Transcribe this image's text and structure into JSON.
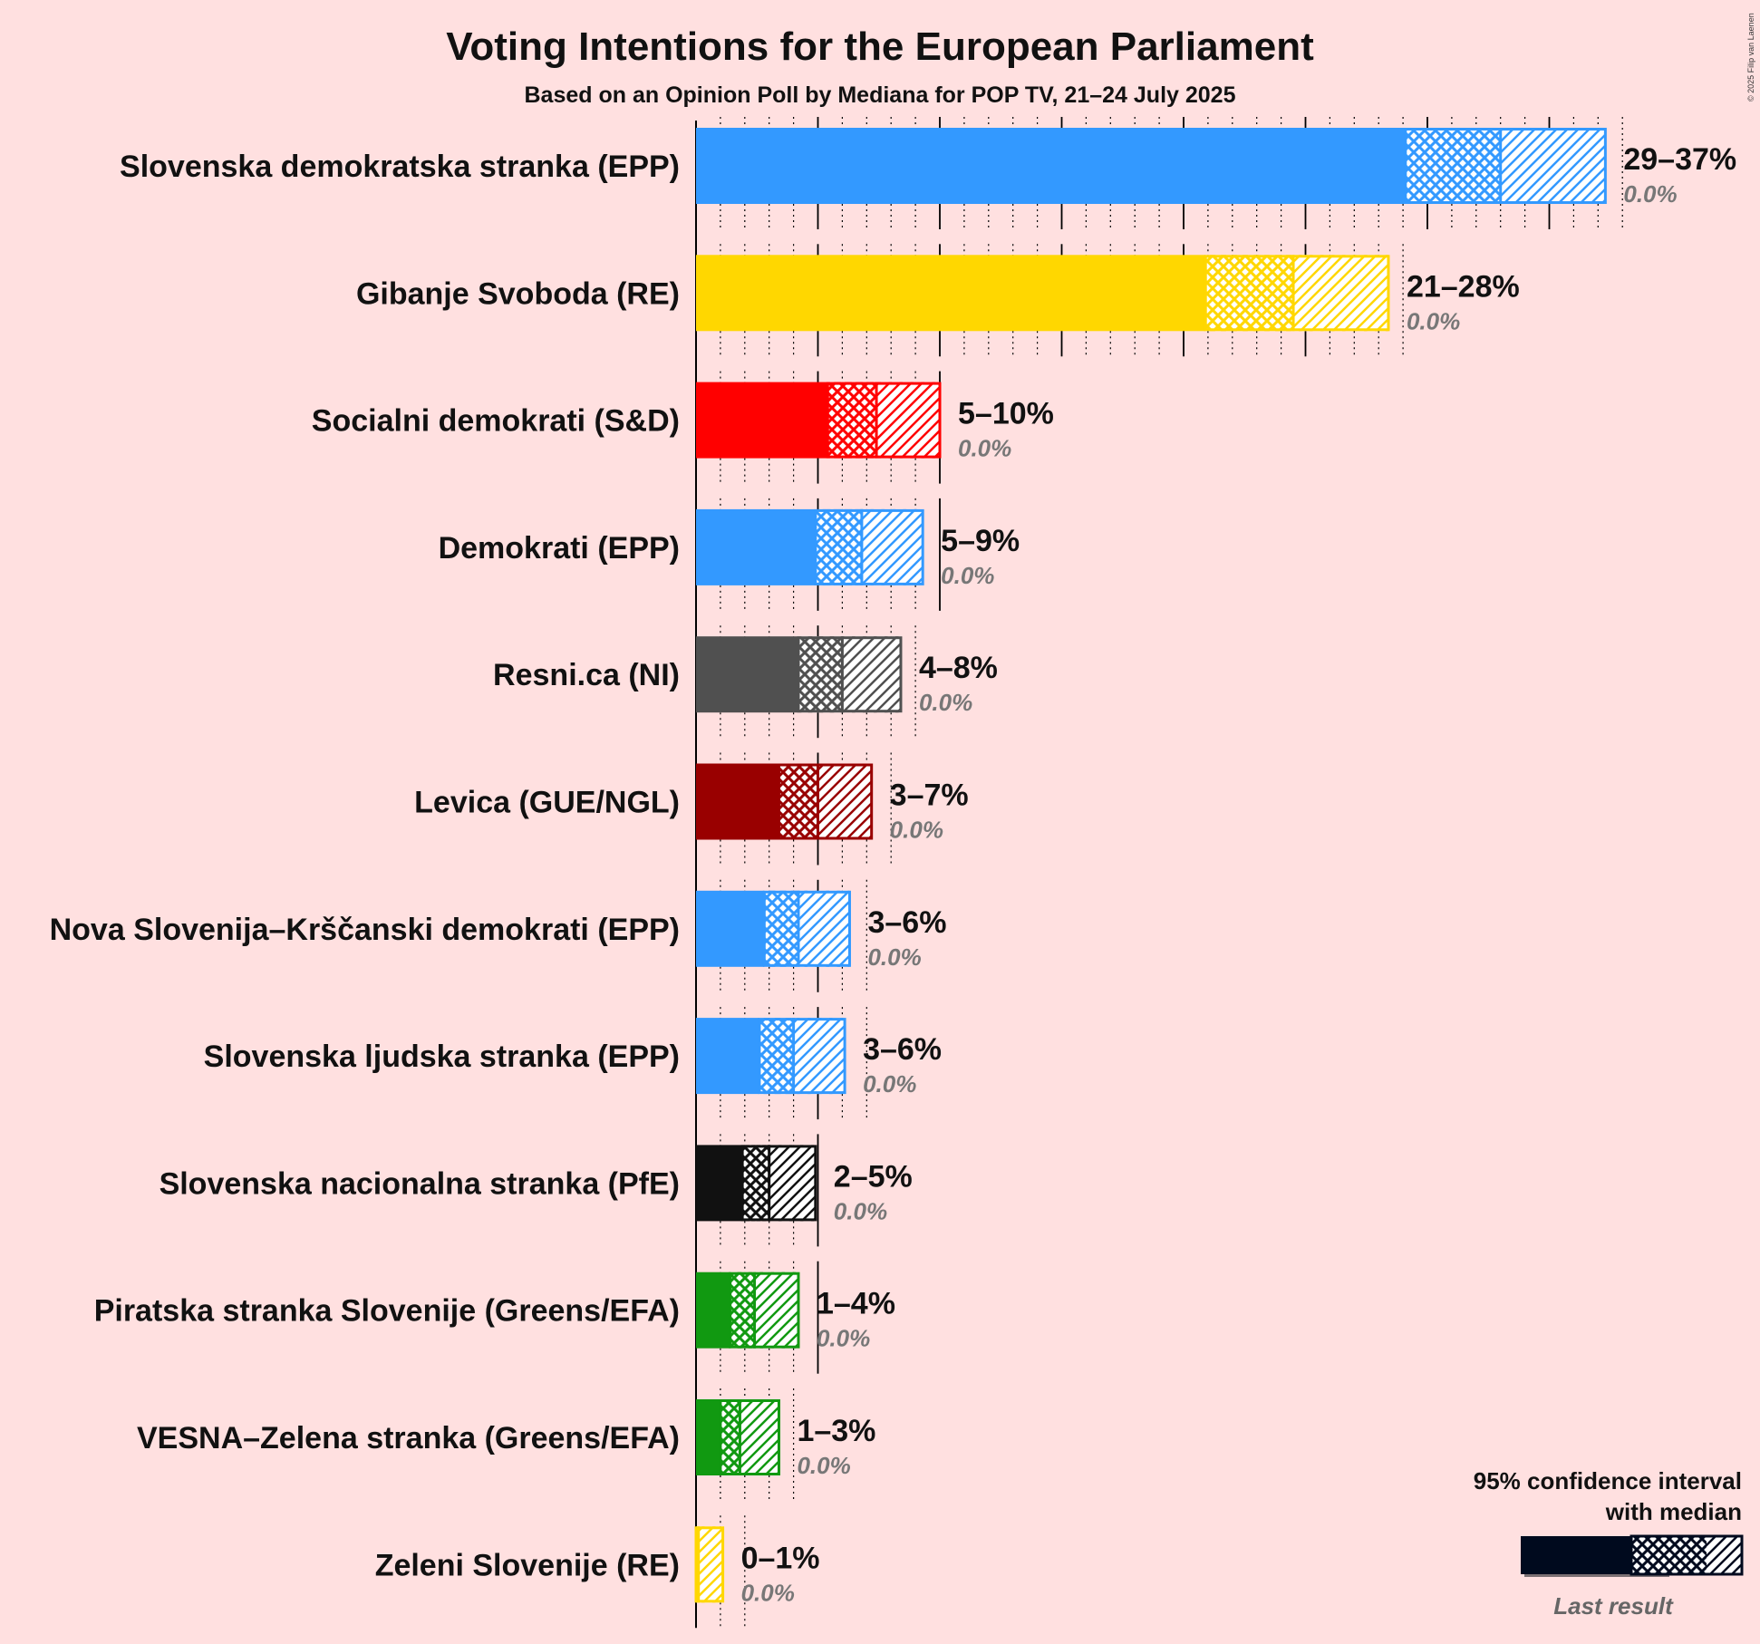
{
  "chart_data": {
    "type": "bar",
    "title": "Voting Intentions for the European Parliament",
    "subtitle": "Based on an Opinion Poll by Mediana for POP TV, 21–24 July 2025",
    "copyright": "© 2025 Filip van Laenen",
    "xlim": [
      0,
      37
    ],
    "series": [
      {
        "name": "Slovenska demokratska stranka (EPP)",
        "color": "#3399FF",
        "ci_low": 29.1,
        "median": 33.0,
        "ci_high": 37.3,
        "range_label": "29–37%",
        "last_result": 0.0,
        "last_label": "0.0%"
      },
      {
        "name": "Gibanje Svoboda (RE)",
        "color": "#FFD700",
        "ci_low": 20.9,
        "median": 24.5,
        "ci_high": 28.4,
        "range_label": "21–28%",
        "last_result": 0.0,
        "last_label": "0.0%"
      },
      {
        "name": "Socialni demokrati (S&D)",
        "color": "#FF0000",
        "ci_low": 5.4,
        "median": 7.4,
        "ci_high": 10.0,
        "range_label": "5–10%",
        "last_result": 0.0,
        "last_label": "0.0%"
      },
      {
        "name": "Demokrati (EPP)",
        "color": "#3399FF",
        "ci_low": 4.9,
        "median": 6.8,
        "ci_high": 9.3,
        "range_label": "5–9%",
        "last_result": 0.0,
        "last_label": "0.0%"
      },
      {
        "name": "Resni.ca (NI)",
        "color": "#505050",
        "ci_low": 4.2,
        "median": 6.0,
        "ci_high": 8.4,
        "range_label": "4–8%",
        "last_result": 0.0,
        "last_label": "0.0%"
      },
      {
        "name": "Levica (GUE/NGL)",
        "color": "#990000",
        "ci_low": 3.4,
        "median": 5.0,
        "ci_high": 7.2,
        "range_label": "3–7%",
        "last_result": 0.0,
        "last_label": "0.0%"
      },
      {
        "name": "Nova Slovenija–Krščanski demokrati (EPP)",
        "color": "#3399FF",
        "ci_low": 2.8,
        "median": 4.2,
        "ci_high": 6.3,
        "range_label": "3–6%",
        "last_result": 0.0,
        "last_label": "0.0%"
      },
      {
        "name": "Slovenska ljudska stranka (EPP)",
        "color": "#3399FF",
        "ci_low": 2.6,
        "median": 4.0,
        "ci_high": 6.1,
        "range_label": "3–6%",
        "last_result": 0.0,
        "last_label": "0.0%"
      },
      {
        "name": "Slovenska nacionalna stranka (PfE)",
        "color": "#111111",
        "ci_low": 1.9,
        "median": 3.0,
        "ci_high": 4.9,
        "range_label": "2–5%",
        "last_result": 0.0,
        "last_label": "0.0%"
      },
      {
        "name": "Piratska stranka Slovenije (Greens/EFA)",
        "color": "#119911",
        "ci_low": 1.4,
        "median": 2.4,
        "ci_high": 4.2,
        "range_label": "1–4%",
        "last_result": 0.0,
        "last_label": "0.0%"
      },
      {
        "name": "VESNA–Zelena stranka (Greens/EFA)",
        "color": "#119911",
        "ci_low": 1.0,
        "median": 1.8,
        "ci_high": 3.4,
        "range_label": "1–3%",
        "last_result": 0.0,
        "last_label": "0.0%"
      },
      {
        "name": "Zeleni Slovenije (RE)",
        "color": "#FFD700",
        "ci_low": 0.0,
        "median": 0.1,
        "ci_high": 1.1,
        "range_label": "0–1%",
        "last_result": 0.0,
        "last_label": "0.0%"
      }
    ],
    "legend": {
      "placement": "bottom-right",
      "title_line1": "95% confidence interval",
      "title_line2": "with median",
      "last_label": "Last result",
      "color": "#000A1E"
    },
    "grid": true
  }
}
